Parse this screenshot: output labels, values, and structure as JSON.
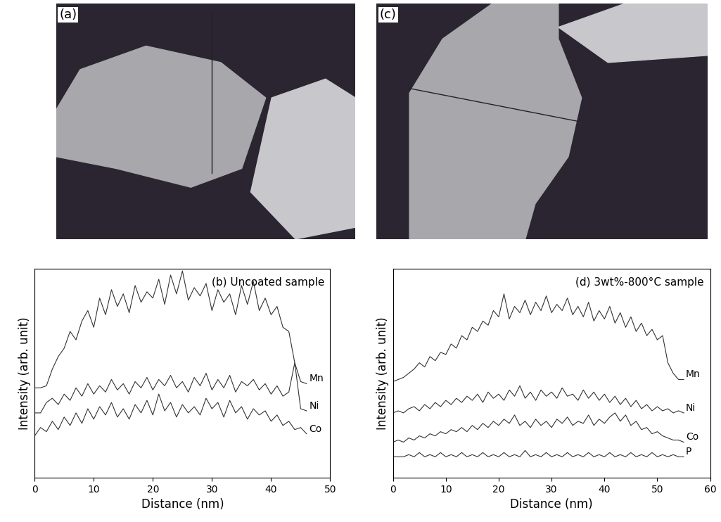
{
  "images": [
    {
      "label": "(a)"
    },
    {
      "label": "(c)"
    }
  ],
  "chart_data": [
    {
      "type": "line",
      "title": "(b) Uncoated sample",
      "x_label": "Distance (nm)",
      "y_label": "Intensity (arb. unit)",
      "xlim": [
        0,
        50
      ],
      "xticks": [
        0,
        10,
        20,
        30,
        40,
        50
      ],
      "ylim": [
        0,
        100
      ],
      "yticks": [],
      "tick_labels": "x",
      "x": [
        0,
        1,
        2,
        3,
        4,
        5,
        6,
        7,
        8,
        9,
        10,
        11,
        12,
        13,
        14,
        15,
        16,
        17,
        18,
        19,
        20,
        21,
        22,
        23,
        24,
        25,
        26,
        27,
        28,
        29,
        30,
        31,
        32,
        33,
        34,
        35,
        36,
        37,
        38,
        39,
        40,
        41,
        42,
        43,
        44,
        45,
        46
      ],
      "series": [
        {
          "name": "Mn",
          "color": "#333333",
          "values": [
            43,
            43,
            44,
            52,
            58,
            62,
            70,
            66,
            75,
            80,
            72,
            86,
            78,
            90,
            82,
            88,
            79,
            92,
            84,
            89,
            86,
            95,
            83,
            97,
            88,
            99,
            85,
            91,
            87,
            93,
            80,
            90,
            84,
            88,
            78,
            92,
            83,
            94,
            80,
            86,
            78,
            82,
            72,
            70,
            55,
            46,
            45
          ]
        },
        {
          "name": "Ni",
          "color": "#333333",
          "values": [
            31,
            31,
            36,
            38,
            35,
            40,
            37,
            43,
            39,
            45,
            40,
            44,
            41,
            47,
            42,
            45,
            40,
            46,
            43,
            48,
            42,
            47,
            44,
            49,
            43,
            46,
            41,
            48,
            44,
            50,
            42,
            47,
            43,
            49,
            41,
            46,
            44,
            47,
            42,
            45,
            40,
            44,
            39,
            41,
            55,
            33,
            32
          ]
        },
        {
          "name": "Co",
          "color": "#333333",
          "values": [
            20,
            24,
            22,
            27,
            23,
            29,
            25,
            31,
            26,
            33,
            28,
            34,
            30,
            36,
            29,
            33,
            28,
            35,
            31,
            37,
            30,
            40,
            32,
            36,
            29,
            35,
            31,
            34,
            30,
            38,
            33,
            36,
            29,
            37,
            31,
            34,
            28,
            33,
            30,
            32,
            27,
            30,
            25,
            27,
            23,
            24,
            21
          ]
        }
      ]
    },
    {
      "type": "line",
      "title": "(d) 3wt%-800°C sample",
      "x_label": "Distance (nm)",
      "y_label": "Intensity (arb. unit)",
      "xlim": [
        0,
        60
      ],
      "xticks": [
        0,
        10,
        20,
        30,
        40,
        50,
        60
      ],
      "ylim": [
        0,
        100
      ],
      "yticks": [],
      "tick_labels": "x",
      "x": [
        0,
        1,
        2,
        3,
        4,
        5,
        6,
        7,
        8,
        9,
        10,
        11,
        12,
        13,
        14,
        15,
        16,
        17,
        18,
        19,
        20,
        21,
        22,
        23,
        24,
        25,
        26,
        27,
        28,
        29,
        30,
        31,
        32,
        33,
        34,
        35,
        36,
        37,
        38,
        39,
        40,
        41,
        42,
        43,
        44,
        45,
        46,
        47,
        48,
        49,
        50,
        51,
        52,
        53,
        54,
        55
      ],
      "series": [
        {
          "name": "Mn",
          "color": "#333333",
          "values": [
            46,
            47,
            48,
            50,
            52,
            55,
            53,
            58,
            56,
            60,
            59,
            64,
            62,
            68,
            66,
            72,
            70,
            75,
            73,
            80,
            77,
            88,
            76,
            82,
            79,
            85,
            78,
            84,
            80,
            87,
            79,
            83,
            80,
            86,
            78,
            82,
            77,
            84,
            75,
            80,
            76,
            82,
            74,
            79,
            72,
            77,
            70,
            74,
            68,
            71,
            66,
            68,
            55,
            50,
            47,
            47
          ]
        },
        {
          "name": "Ni",
          "color": "#333333",
          "values": [
            31,
            32,
            31,
            33,
            34,
            32,
            35,
            33,
            36,
            34,
            37,
            35,
            38,
            36,
            39,
            37,
            40,
            36,
            41,
            38,
            40,
            37,
            42,
            39,
            44,
            38,
            41,
            37,
            42,
            39,
            41,
            38,
            43,
            39,
            40,
            37,
            42,
            38,
            41,
            37,
            40,
            36,
            39,
            35,
            38,
            34,
            37,
            33,
            35,
            32,
            34,
            32,
            33,
            31,
            32,
            31
          ]
        },
        {
          "name": "Co",
          "color": "#333333",
          "values": [
            17,
            18,
            17,
            19,
            18,
            20,
            19,
            21,
            20,
            22,
            21,
            23,
            22,
            24,
            22,
            25,
            23,
            26,
            24,
            27,
            25,
            28,
            26,
            30,
            25,
            27,
            24,
            28,
            25,
            27,
            24,
            28,
            26,
            29,
            25,
            27,
            26,
            30,
            25,
            28,
            26,
            29,
            31,
            27,
            30,
            25,
            27,
            23,
            24,
            21,
            22,
            20,
            19,
            18,
            18,
            17
          ]
        },
        {
          "name": "P",
          "color": "#333333",
          "values": [
            10,
            10,
            10,
            11,
            10,
            12,
            10,
            11,
            10,
            12,
            10,
            11,
            10,
            12,
            10,
            11,
            10,
            12,
            10,
            11,
            10,
            12,
            10,
            11,
            10,
            13,
            10,
            11,
            10,
            12,
            10,
            11,
            10,
            12,
            10,
            11,
            10,
            12,
            10,
            11,
            10,
            12,
            10,
            11,
            10,
            12,
            10,
            11,
            10,
            12,
            10,
            11,
            10,
            11,
            10,
            10
          ]
        }
      ]
    }
  ]
}
